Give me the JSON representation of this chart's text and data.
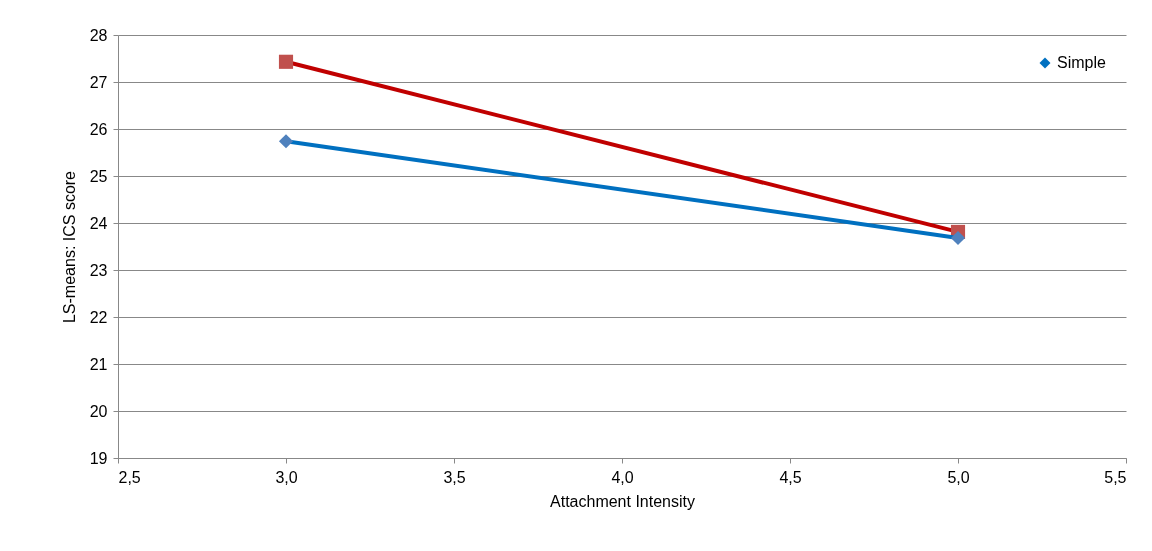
{
  "chart_data": {
    "type": "line",
    "xlabel": "Attachment Intensity",
    "ylabel": "LS-means:  ICS score",
    "xlim": [
      2.5,
      5.5
    ],
    "xticks": [
      {
        "value": 2.5,
        "label": "2,5"
      },
      {
        "value": 3,
        "label": "3,0"
      },
      {
        "value": 3.5,
        "label": "3,5"
      },
      {
        "value": 4,
        "label": "4,0"
      },
      {
        "value": 4.5,
        "label": "4,5"
      },
      {
        "value": 5,
        "label": "5,0"
      },
      {
        "value": 5.5,
        "label": "5,5"
      }
    ],
    "ylim": [
      19,
      28
    ],
    "yticks": [
      19,
      20,
      21,
      22,
      23,
      24,
      25,
      26,
      27,
      28
    ],
    "x": [
      3,
      5
    ],
    "grid": "y",
    "legend": "top right",
    "series": [
      {
        "name": "Simple",
        "color": "#0070c0",
        "marker": "diamond",
        "values": [
          25.74,
          23.68
        ]
      },
      {
        "color": "#c00000",
        "marker": "square",
        "values": [
          27.43,
          23.81
        ]
      }
    ]
  }
}
